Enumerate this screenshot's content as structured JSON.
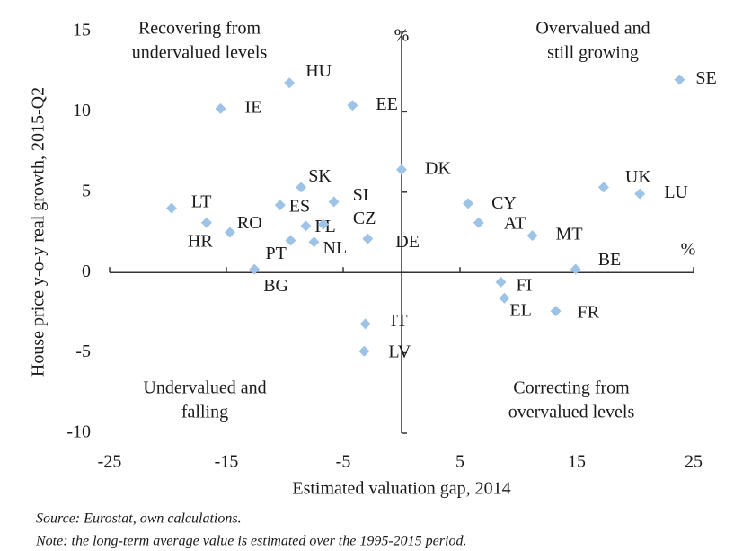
{
  "chart_data": {
    "type": "scatter",
    "xlabel": "Estimated valuation gap, 2014",
    "ylabel": "House price y-o-y real growth, 2015-Q2",
    "x_unit": "%",
    "y_unit": "%",
    "annotations": [
      [
        "Recovering from",
        "undervalued levels"
      ],
      [
        "Overvalued and",
        "still growing"
      ],
      [
        "Undervalued and",
        "falling"
      ],
      [
        "Correcting from",
        "overvalued levels"
      ]
    ],
    "source": "Source: Eurostat, own calculations.",
    "note": "Note: the long-term average value is estimated over the 1995-2015 period.",
    "xlim": [
      -25,
      25
    ],
    "xticks": [
      -25,
      -15,
      -5,
      5,
      15,
      25
    ],
    "ylim": [
      -10,
      15
    ],
    "yticks": [
      -10,
      -5,
      0,
      5,
      10,
      15
    ],
    "series": [
      {
        "color": "#9dc3e6",
        "point_labels": [
          "SE",
          "HU",
          "IE",
          "EE",
          "DK",
          "SK",
          "UK",
          "LU",
          "SI",
          "ES",
          "CY",
          "LT",
          "HR",
          "RO",
          "PL",
          "CZ",
          "AT",
          "MT",
          "PT",
          "NL",
          "DE",
          "BE",
          "BG",
          "FI",
          "EL",
          "FR",
          "IT",
          "LV"
        ],
        "x": [
          23.8,
          -9.6,
          -15.5,
          -4.2,
          0,
          -8.6,
          17.3,
          20.4,
          -5.8,
          -10.4,
          5.7,
          -19.7,
          -16.7,
          -14.7,
          -8.2,
          -6.7,
          6.6,
          11.2,
          -9.5,
          -7.5,
          -2.9,
          14.9,
          -12.6,
          8.5,
          8.8,
          13.2,
          -3.1,
          -3.2
        ],
        "values": [
          12.0,
          11.8,
          10.2,
          10.4,
          6.4,
          5.3,
          5.3,
          4.9,
          4.4,
          4.2,
          4.3,
          4.0,
          3.1,
          2.5,
          2.9,
          3.0,
          3.1,
          2.3,
          2.0,
          1.9,
          2.1,
          0.2,
          0.2,
          -0.6,
          -1.6,
          -2.4,
          -3.2,
          -4.9
        ]
      }
    ]
  }
}
